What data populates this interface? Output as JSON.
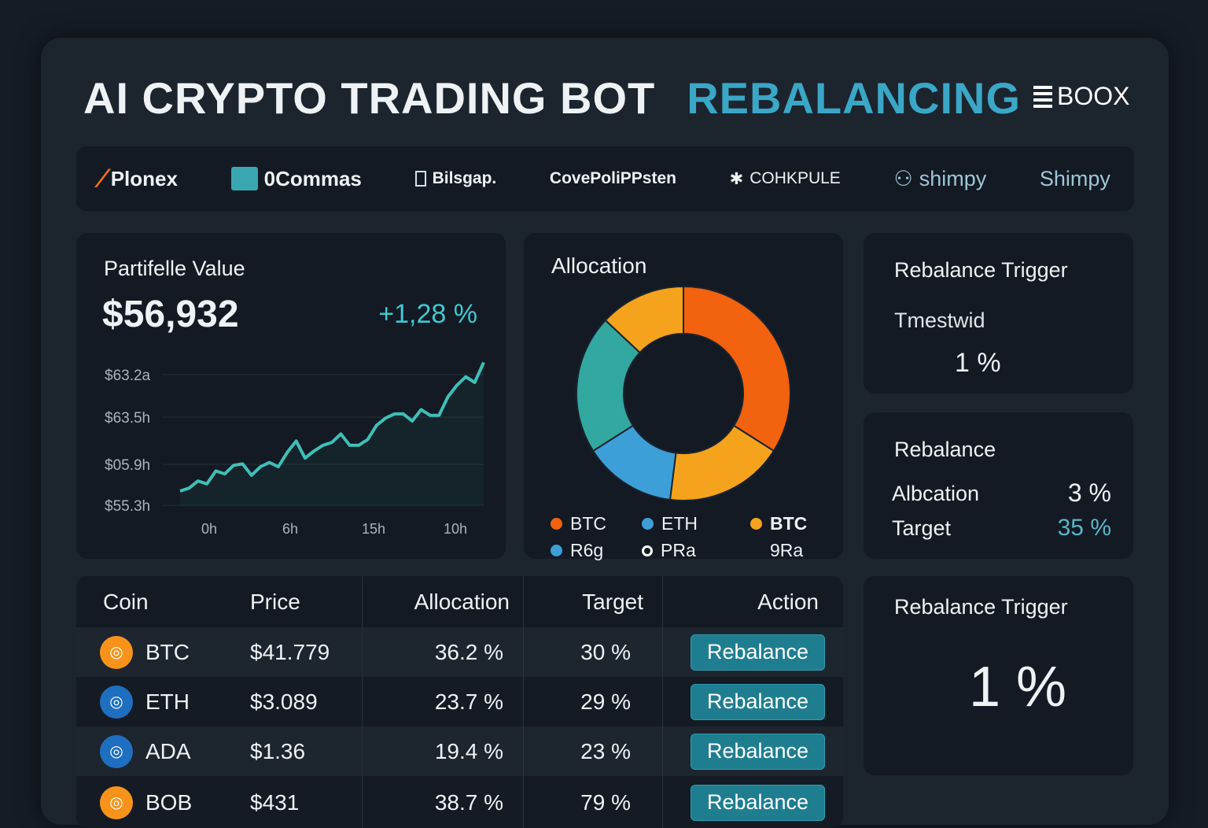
{
  "header": {
    "title_main": "AI CRYPTO TRADING BOT",
    "title_accent": "REBALANCING",
    "logo": "BOOX",
    "accent_color": "#3aa7c7"
  },
  "exchanges": [
    {
      "label": "Plonex",
      "icon": "plonex-logo-icon",
      "color": "#f26a1b"
    },
    {
      "label": "0Commas",
      "icon": "commas-logo-icon",
      "color": "#3aa7b0"
    },
    {
      "label": "Bilsgap.",
      "icon": "document-icon",
      "color": "#cfe3f0"
    },
    {
      "label": "CovePoliPPsten",
      "icon": "",
      "color": ""
    },
    {
      "label": "COHKPULE",
      "icon": "flame-icon",
      "color": "#ffffff"
    },
    {
      "label": "shimpy",
      "icon": "people-icon",
      "color": "#9fc6d6"
    },
    {
      "label": "Shimpy",
      "icon": "",
      "color": ""
    }
  ],
  "portfolio": {
    "title": "Partifelle Value",
    "value": "$56,932",
    "change": "+1,28 %",
    "change_color": "#3fc8d2"
  },
  "chart_data": {
    "type": "line",
    "title": "",
    "ytick_labels": [
      "$63.2a",
      "$63.5h",
      "$05.9h",
      "$55.3h"
    ],
    "xtick_labels": [
      "0h",
      "6h",
      "15h",
      "10h"
    ],
    "grid": true,
    "series": [
      {
        "color": "#3fbfb8",
        "values": [
          2,
          4,
          9,
          7,
          16,
          14,
          20,
          21,
          13,
          19,
          22,
          19,
          29,
          37,
          25,
          30,
          34,
          36,
          42,
          34,
          34,
          38,
          48,
          53,
          56,
          56,
          51,
          59,
          55,
          55,
          68,
          76,
          82,
          78,
          92
        ]
      }
    ],
    "ylim": [
      -8,
      100
    ]
  },
  "allocation": {
    "title": "Allocation",
    "donut": [
      {
        "value": 34,
        "color": "#f2620f"
      },
      {
        "value": 18,
        "color": "#f5a31c"
      },
      {
        "value": 14,
        "color": "#3d9fd8"
      },
      {
        "value": 21,
        "color": "#33a8a0"
      },
      {
        "value": 13,
        "color": "#f5a31c"
      }
    ],
    "legend": [
      {
        "label": "BTC",
        "color": "#f2620f",
        "hollow": false
      },
      {
        "label": "ETH",
        "color": "#3d9fd8",
        "hollow": false
      },
      {
        "label": "BTC",
        "color": "#f5a31c",
        "hollow": false
      },
      {
        "label": "R6g",
        "color": "#3d9fd8",
        "hollow": false
      },
      {
        "label": "PRa",
        "color": "#ffffff",
        "hollow": true
      },
      {
        "label": "9Ra",
        "color": "",
        "hollow": false
      }
    ]
  },
  "trigger": {
    "title": "Rebalance Trigger",
    "sub": "Tmestwid",
    "value": "1 %"
  },
  "rebalance": {
    "title": "Rebalance",
    "rows": [
      {
        "label": "Albcation",
        "value": "3 %"
      },
      {
        "label": "Target",
        "value": "35 %"
      }
    ]
  },
  "trigger2": {
    "title": "Rebalance Trigger",
    "value": "1 %"
  },
  "table": {
    "headers": [
      "Coin",
      "Price",
      "Allocation",
      "Target",
      "Action"
    ],
    "rows": [
      {
        "coin": "BTC",
        "price": "$41.779",
        "allocation": "36.2 %",
        "target": "30 %",
        "action": "Rebalance",
        "color": "#f7931a"
      },
      {
        "coin": "ETH",
        "price": "$3.089",
        "allocation": "23.7 %",
        "target": "29 %",
        "action": "Rebalance",
        "color": "#1f6fc0"
      },
      {
        "coin": "ADA",
        "price": "$1.36",
        "allocation": "19.4 %",
        "target": "23 %",
        "action": "Rebalance",
        "color": "#1f6fc0"
      },
      {
        "coin": "BOB",
        "price": "$431",
        "allocation": "38.7 %",
        "target": "79 %",
        "action": "Rebalance",
        "color": "#f7931a"
      }
    ]
  }
}
